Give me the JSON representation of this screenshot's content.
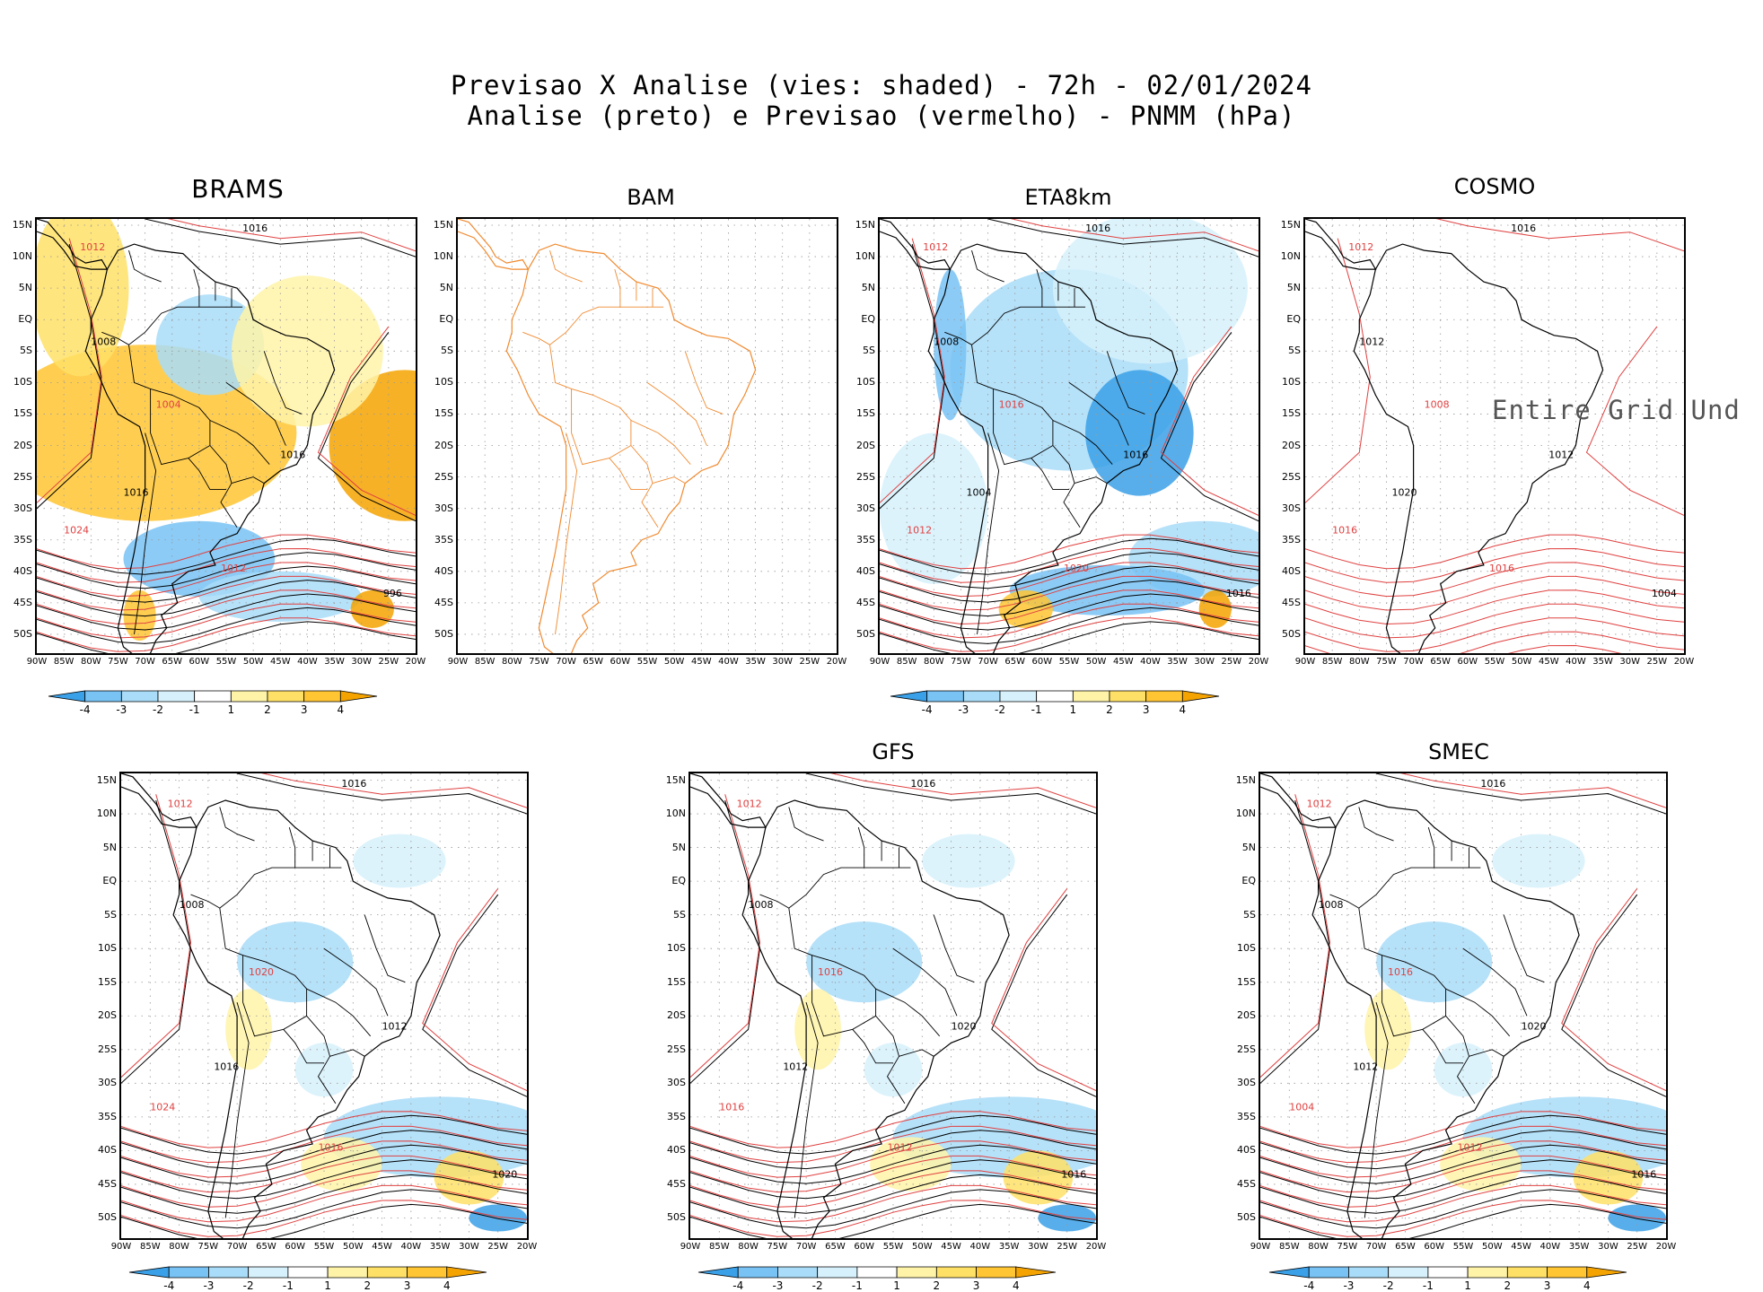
{
  "header": {
    "line1": "Previsao X Analise (vies: shaded) - 72h - 02/01/2024",
    "line2": "Analise (preto) e Previsao (vermelho) - PNMM (hPa)"
  },
  "axes": {
    "lat_labels": [
      "15N",
      "10N",
      "5N",
      "EQ",
      "5S",
      "10S",
      "15S",
      "20S",
      "25S",
      "30S",
      "35S",
      "40S",
      "45S",
      "50S"
    ],
    "lon_labels": [
      "90W",
      "85W",
      "80W",
      "75W",
      "70W",
      "65W",
      "60W",
      "55W",
      "50W",
      "45W",
      "40W",
      "35W",
      "30W",
      "25W",
      "20W"
    ]
  },
  "colorbar": {
    "labels": [
      "-4",
      "-3",
      "-2",
      "-1",
      "1",
      "2",
      "3",
      "4"
    ],
    "colors": [
      "#3aa0e8",
      "#78c2f4",
      "#a8dcf8",
      "#d6f1fc",
      "#ffffff",
      "#fff3a8",
      "#ffe066",
      "#ffc533",
      "#f4a300"
    ]
  },
  "colors": {
    "analysis": "#000000",
    "forecast": "#e04040",
    "coast_bam": "#f08a30"
  },
  "panels": [
    {
      "id": "brams",
      "title": "BRAMS",
      "bias": "warm",
      "labels": [
        "1016",
        "1012",
        "1008",
        "1004",
        "1016",
        "1024",
        "1016",
        "1012",
        "996"
      ]
    },
    {
      "id": "bam",
      "title": "BAM",
      "bias": "none",
      "labels": []
    },
    {
      "id": "eta",
      "title": "ETA8km",
      "bias": "cold",
      "labels": [
        "1016",
        "1012",
        "1008",
        "1016",
        "1004",
        "1012",
        "1016",
        "1020",
        "1016"
      ]
    },
    {
      "id": "cosmo",
      "title": "COSMO",
      "bias": "none",
      "undef": "Entire Grid Und",
      "labels": [
        "1016",
        "1012",
        "1012",
        "1008",
        "1020",
        "1016",
        "1012",
        "1016",
        "1004"
      ]
    },
    {
      "id": "p5",
      "title": "",
      "bias": "mixed",
      "labels": [
        "1016",
        "1012",
        "1008",
        "1020",
        "1016",
        "1024",
        "1012",
        "1016",
        "1020"
      ]
    },
    {
      "id": "gfs",
      "title": "GFS",
      "bias": "mixed",
      "labels": [
        "1016",
        "1012",
        "1008",
        "1016",
        "1012",
        "1016",
        "1020",
        "1012",
        "1016"
      ]
    },
    {
      "id": "smec",
      "title": "SMEC",
      "bias": "mixed",
      "labels": [
        "1016",
        "1012",
        "1008",
        "1016",
        "1012",
        "1004",
        "1020",
        "1012",
        "1016"
      ]
    }
  ]
}
